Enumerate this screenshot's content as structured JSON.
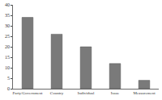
{
  "chart_data": {
    "type": "bar",
    "categories": [
      "Party/Government",
      "Country",
      "Individual",
      "Issue",
      "Measurement"
    ],
    "values": [
      34,
      26,
      20,
      12,
      4
    ],
    "color": "#7a7a7a",
    "ylim": [
      0,
      40
    ],
    "yticks": [
      0,
      5,
      10,
      15,
      20,
      25,
      30,
      35,
      40
    ],
    "grid": false
  }
}
